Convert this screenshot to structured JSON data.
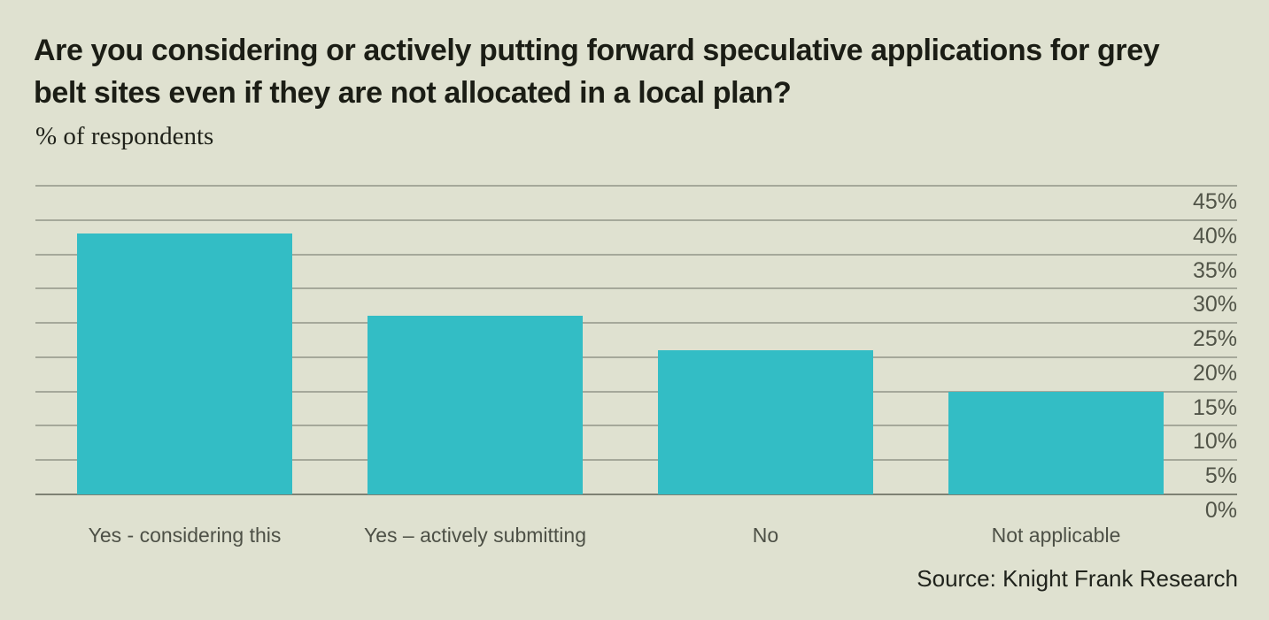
{
  "page": {
    "background_color": "#dfe1d0"
  },
  "header": {
    "title": "Are you considering or actively putting forward speculative applications for grey belt sites even if they are not allocated in a local plan?",
    "subtitle": "% of respondents"
  },
  "footer": {
    "source": "Source: Knight Frank Research"
  },
  "chart_data": {
    "type": "bar",
    "title": "Are you considering or actively putting forward speculative applications for grey belt sites even if they are not allocated in a local plan?",
    "ylabel": "% of respondents",
    "categories": [
      "Yes - considering this",
      "Yes – actively submitting",
      "No",
      "Not applicable"
    ],
    "values": [
      38,
      26,
      21,
      15
    ],
    "unit": "%",
    "ylim": [
      0,
      45
    ],
    "ytick_step": 5,
    "ytick_labels": [
      "45%",
      "40%",
      "35%",
      "30%",
      "25%",
      "20%",
      "15%",
      "10%",
      "5%",
      "0%"
    ],
    "grid": true,
    "legend": "none",
    "bar_color": "#33bdc5",
    "grid_color": "#a5a89a",
    "axis_color": "#7e8173",
    "tick_label_color": "#515448",
    "category_label_color": "#4d5046",
    "source": "Source: Knight Frank Research"
  }
}
